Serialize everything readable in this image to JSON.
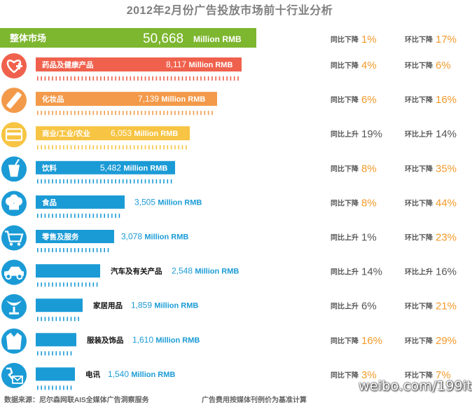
{
  "title": "2012年2月份广告投放市场前十行业分析",
  "footer": {
    "source": "数据来源：尼尔森网联AIS全媒体广告洞察服务",
    "note": "广告费用按媒体刊例价为基准计算"
  },
  "watermark": "weibo.com/199it",
  "colors": {
    "total": "#7db62f",
    "health": "#f0614d",
    "cosmetics": "#f39a4a",
    "commerce": "#f7c443",
    "blue": "#1b9bd6",
    "up_text": "#555555",
    "down_text": "#f39a2b"
  },
  "chart_data": {
    "type": "bar",
    "unit": "Million RMB",
    "total": {
      "label": "整体市场",
      "value": 50668,
      "value_text": "50,668",
      "yoy": {
        "label": "同比下降",
        "value": "1%"
      },
      "mom": {
        "label": "环比下降",
        "value": "17%"
      }
    },
    "categories": [
      "药品及健康产品",
      "化妆品",
      "商业/工业/农业",
      "饮料",
      "食品",
      "零售及服务",
      "汽车及有关产品",
      "家居用品",
      "服装及饰品",
      "电讯"
    ],
    "values": [
      8117,
      7139,
      6053,
      5482,
      3505,
      3078,
      2548,
      1859,
      1610,
      1540
    ],
    "rows": [
      {
        "label": "药品及健康产品",
        "value": 8117,
        "value_text": "8,117",
        "color_key": "health",
        "icon": "health-icon",
        "yoy": {
          "label": "同比下降",
          "value": "4%"
        },
        "mom": {
          "label": "环比下降",
          "value": "6%"
        }
      },
      {
        "label": "化妆品",
        "value": 7139,
        "value_text": "7,139",
        "color_key": "cosmetics",
        "icon": "lipstick-icon",
        "yoy": {
          "label": "同比下降",
          "value": "6%"
        },
        "mom": {
          "label": "环比下降",
          "value": "16%"
        }
      },
      {
        "label": "商业/工业/农业",
        "value": 6053,
        "value_text": "6,053",
        "color_key": "commerce",
        "icon": "card-icon",
        "yoy": {
          "label": "同比上升",
          "value": "19%"
        },
        "mom": {
          "label": "环比上升",
          "value": "14%"
        }
      },
      {
        "label": "饮料",
        "value": 5482,
        "value_text": "5,482",
        "color_key": "blue",
        "icon": "drink-icon",
        "yoy": {
          "label": "同比下降",
          "value": "8%"
        },
        "mom": {
          "label": "环比下降",
          "value": "35%"
        }
      },
      {
        "label": "食品",
        "value": 3505,
        "value_text": "3,505",
        "color_key": "blue",
        "icon": "chef-hat-icon",
        "yoy": {
          "label": "同比下降",
          "value": "8%"
        },
        "mom": {
          "label": "环比下降",
          "value": "44%"
        }
      },
      {
        "label": "零售及服务",
        "value": 3078,
        "value_text": "3,078",
        "color_key": "blue",
        "icon": "cart-icon",
        "yoy": {
          "label": "同比上升",
          "value": "1%"
        },
        "mom": {
          "label": "环比下降",
          "value": "23%"
        }
      },
      {
        "label": "汽车及有关产品",
        "value": 2548,
        "value_text": "2,548",
        "color_key": "blue",
        "icon": "car-icon",
        "yoy": {
          "label": "同比上升",
          "value": "14%"
        },
        "mom": {
          "label": "环比上升",
          "value": "16%"
        }
      },
      {
        "label": "家居用品",
        "value": 1859,
        "value_text": "1,859",
        "color_key": "blue",
        "icon": "chair-icon",
        "yoy": {
          "label": "同比上升",
          "value": "6%"
        },
        "mom": {
          "label": "环比下降",
          "value": "21%"
        }
      },
      {
        "label": "服装及饰品",
        "value": 1610,
        "value_text": "1,610",
        "color_key": "blue",
        "icon": "shirt-icon",
        "yoy": {
          "label": "同比下降",
          "value": "16%"
        },
        "mom": {
          "label": "环比下降",
          "value": "29%"
        }
      },
      {
        "label": "电讯",
        "value": 1540,
        "value_text": "1,540",
        "color_key": "blue",
        "icon": "phone-mail-icon",
        "yoy": {
          "label": "同比下降",
          "value": "3%"
        },
        "mom": {
          "label": "环比下降",
          "value": "7%"
        }
      }
    ]
  }
}
